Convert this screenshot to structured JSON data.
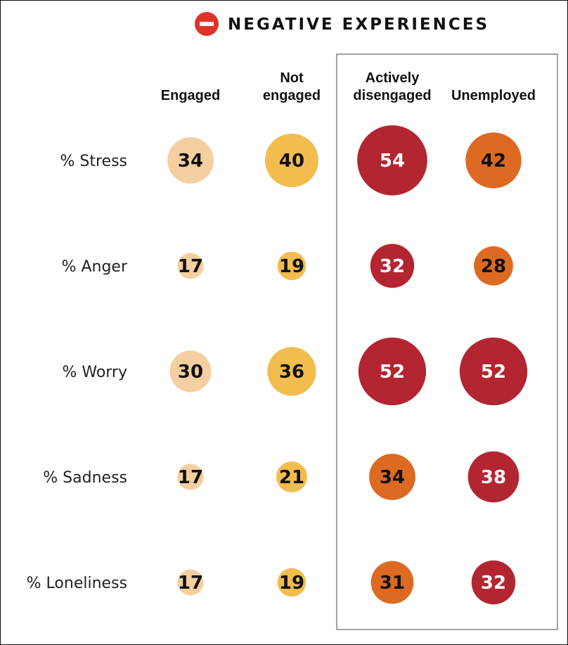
{
  "chart_data": {
    "type": "bubble-table",
    "title": "NEGATIVE EXPERIENCES",
    "title_icon": "minus-circle-icon",
    "columns": [
      [
        "Engaged"
      ],
      [
        "Not",
        "engaged"
      ],
      [
        "Actively",
        "disengaged"
      ],
      [
        "Unemployed"
      ]
    ],
    "highlighted_columns": [
      "Actively disengaged",
      "Unemployed"
    ],
    "rows": [
      {
        "label": "% Stress",
        "values": [
          34,
          40,
          54,
          42
        ]
      },
      {
        "label": "% Anger",
        "values": [
          17,
          19,
          32,
          28
        ]
      },
      {
        "label": "% Worry",
        "values": [
          30,
          36,
          52,
          52
        ]
      },
      {
        "label": "% Sadness",
        "values": [
          17,
          21,
          34,
          38
        ]
      },
      {
        "label": "% Loneliness",
        "values": [
          17,
          19,
          31,
          32
        ]
      }
    ],
    "colors": [
      [
        "#f5cfa0",
        "#f2bd4e",
        "#b32531",
        "#dd6a22"
      ],
      [
        "#f5cfa0",
        "#f2bd4e",
        "#b32531",
        "#dd6a22"
      ],
      [
        "#f5cfa0",
        "#f2bd4e",
        "#b32531",
        "#b32531"
      ],
      [
        "#f5cfa0",
        "#f2bd4e",
        "#dd6a22",
        "#b32531"
      ],
      [
        "#f5cfa0",
        "#f2bd4e",
        "#dd6a22",
        "#b32531"
      ]
    ],
    "label_colors": {
      "#f5cfa0": "#111111",
      "#f2bd4e": "#111111",
      "#dd6a22": "#111111",
      "#b32531": "#ffffff"
    },
    "accent": "#e0322a"
  }
}
